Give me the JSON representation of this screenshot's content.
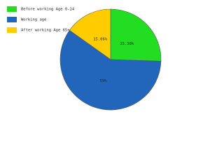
{
  "chart_data": {
    "type": "pie",
    "categories": [
      "Before working Age 0-14",
      "Working age",
      "After working Age 65+"
    ],
    "values": [
      25.38,
      59,
      15.06
    ],
    "value_labels": [
      "25.38%",
      "59%",
      "15.06%"
    ],
    "colors": [
      "#22dd22",
      "#2266bb",
      "#ffcc00"
    ],
    "legend": "top-left"
  }
}
